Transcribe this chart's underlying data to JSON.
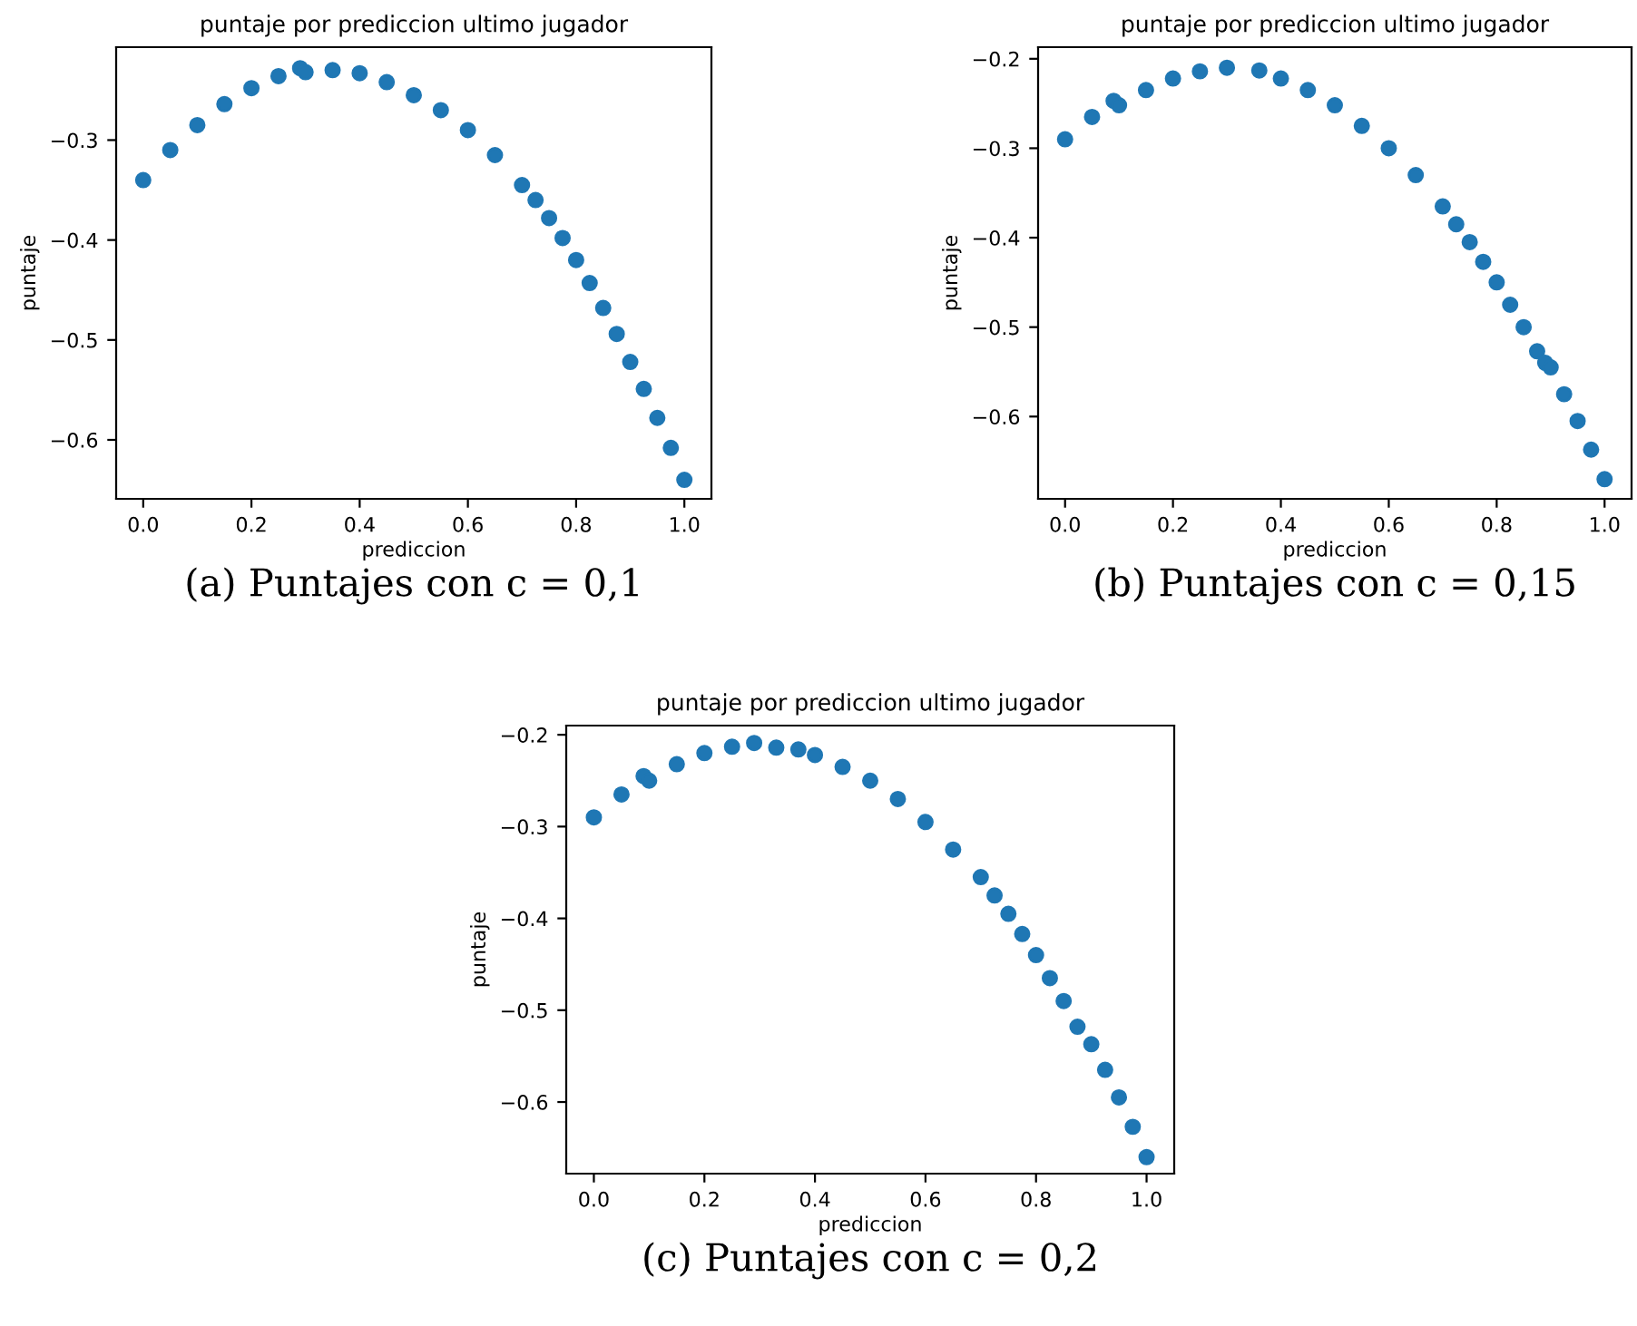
{
  "chart_data": [
    {
      "type": "scatter",
      "title": "puntaje por prediccion ultimo jugador",
      "xlabel": "prediccion",
      "ylabel": "puntaje",
      "annotations": [
        "(a) Puntajes con c = 0,1"
      ],
      "marker": "circle",
      "grid": false,
      "legend": false,
      "xlim": [
        -0.05,
        1.05
      ],
      "ylim": [
        -0.659,
        -0.207
      ],
      "xticks": [
        {
          "value": 0,
          "label": "0.0"
        },
        {
          "value": 0.2,
          "label": "0.2"
        },
        {
          "value": 0.4,
          "label": "0.4"
        },
        {
          "value": 0.6,
          "label": "0.6"
        },
        {
          "value": 0.8,
          "label": "0.8"
        },
        {
          "value": 1,
          "label": "1.0"
        }
      ],
      "yticks": [
        {
          "value": -0.6,
          "label": "−0.6"
        },
        {
          "value": -0.5,
          "label": "−0.5"
        },
        {
          "value": -0.4,
          "label": "−0.4"
        },
        {
          "value": -0.3,
          "label": "−0.3"
        }
      ],
      "series": [
        {
          "color": "#1f77b4",
          "x": [
            0,
            0.05,
            0.1,
            0.15,
            0.2,
            0.25,
            0.29,
            0.3,
            0.35,
            0.4,
            0.45,
            0.5,
            0.55,
            0.6,
            0.65,
            0.7,
            0.725,
            0.75,
            0.775,
            0.8,
            0.825,
            0.85,
            0.875,
            0.9,
            0.925,
            0.95,
            0.975,
            1.0
          ],
          "values": [
            -0.34,
            -0.31,
            -0.285,
            -0.264,
            -0.248,
            -0.236,
            -0.228,
            -0.232,
            -0.23,
            -0.233,
            -0.242,
            -0.255,
            -0.27,
            -0.29,
            -0.315,
            -0.345,
            -0.36,
            -0.378,
            -0.398,
            -0.42,
            -0.443,
            -0.468,
            -0.494,
            -0.522,
            -0.549,
            -0.578,
            -0.608,
            -0.64
          ]
        }
      ]
    },
    {
      "type": "scatter",
      "title": "puntaje por prediccion ultimo jugador",
      "xlabel": "prediccion",
      "ylabel": "puntaje",
      "annotations": [
        "(b) Puntajes con c = 0,15"
      ],
      "marker": "circle",
      "grid": false,
      "legend": false,
      "xlim": [
        -0.05,
        1.05
      ],
      "ylim": [
        -0.692,
        -0.187
      ],
      "xticks": [
        {
          "value": 0,
          "label": "0.0"
        },
        {
          "value": 0.2,
          "label": "0.2"
        },
        {
          "value": 0.4,
          "label": "0.4"
        },
        {
          "value": 0.6,
          "label": "0.6"
        },
        {
          "value": 0.8,
          "label": "0.8"
        },
        {
          "value": 1,
          "label": "1.0"
        }
      ],
      "yticks": [
        {
          "value": -0.6,
          "label": "−0.6"
        },
        {
          "value": -0.5,
          "label": "−0.5"
        },
        {
          "value": -0.4,
          "label": "−0.4"
        },
        {
          "value": -0.3,
          "label": "−0.3"
        },
        {
          "value": -0.2,
          "label": "−0.2"
        }
      ],
      "series": [
        {
          "color": "#1f77b4",
          "x": [
            0,
            0.05,
            0.09,
            0.1,
            0.15,
            0.2,
            0.25,
            0.3,
            0.36,
            0.4,
            0.45,
            0.5,
            0.55,
            0.6,
            0.65,
            0.7,
            0.725,
            0.75,
            0.775,
            0.8,
            0.825,
            0.85,
            0.875,
            0.89,
            0.9,
            0.925,
            0.95,
            0.975,
            1.0
          ],
          "values": [
            -0.29,
            -0.265,
            -0.247,
            -0.252,
            -0.235,
            -0.222,
            -0.214,
            -0.21,
            -0.213,
            -0.222,
            -0.235,
            -0.252,
            -0.275,
            -0.3,
            -0.33,
            -0.365,
            -0.385,
            -0.405,
            -0.427,
            -0.45,
            -0.475,
            -0.5,
            -0.527,
            -0.54,
            -0.545,
            -0.575,
            -0.605,
            -0.637,
            -0.67
          ]
        }
      ]
    },
    {
      "type": "scatter",
      "title": "puntaje por prediccion ultimo jugador",
      "xlabel": "prediccion",
      "ylabel": "puntaje",
      "annotations": [
        "(c) Puntajes con c = 0,2"
      ],
      "marker": "circle",
      "grid": false,
      "legend": false,
      "xlim": [
        -0.05,
        1.05
      ],
      "ylim": [
        -0.678,
        -0.19
      ],
      "xticks": [
        {
          "value": 0,
          "label": "0.0"
        },
        {
          "value": 0.2,
          "label": "0.2"
        },
        {
          "value": 0.4,
          "label": "0.4"
        },
        {
          "value": 0.6,
          "label": "0.6"
        },
        {
          "value": 0.8,
          "label": "0.8"
        },
        {
          "value": 1,
          "label": "1.0"
        }
      ],
      "yticks": [
        {
          "value": -0.6,
          "label": "−0.6"
        },
        {
          "value": -0.5,
          "label": "−0.5"
        },
        {
          "value": -0.4,
          "label": "−0.4"
        },
        {
          "value": -0.3,
          "label": "−0.3"
        },
        {
          "value": -0.2,
          "label": "−0.2"
        }
      ],
      "series": [
        {
          "color": "#1f77b4",
          "x": [
            0,
            0.05,
            0.09,
            0.1,
            0.15,
            0.2,
            0.25,
            0.29,
            0.33,
            0.37,
            0.4,
            0.45,
            0.5,
            0.55,
            0.6,
            0.65,
            0.7,
            0.725,
            0.75,
            0.775,
            0.8,
            0.825,
            0.85,
            0.875,
            0.9,
            0.925,
            0.95,
            0.975,
            1.0
          ],
          "values": [
            -0.29,
            -0.265,
            -0.245,
            -0.25,
            -0.232,
            -0.22,
            -0.213,
            -0.209,
            -0.214,
            -0.216,
            -0.222,
            -0.235,
            -0.25,
            -0.27,
            -0.295,
            -0.325,
            -0.355,
            -0.375,
            -0.395,
            -0.417,
            -0.44,
            -0.465,
            -0.49,
            -0.518,
            -0.537,
            -0.565,
            -0.595,
            -0.627,
            -0.66
          ]
        }
      ]
    }
  ]
}
